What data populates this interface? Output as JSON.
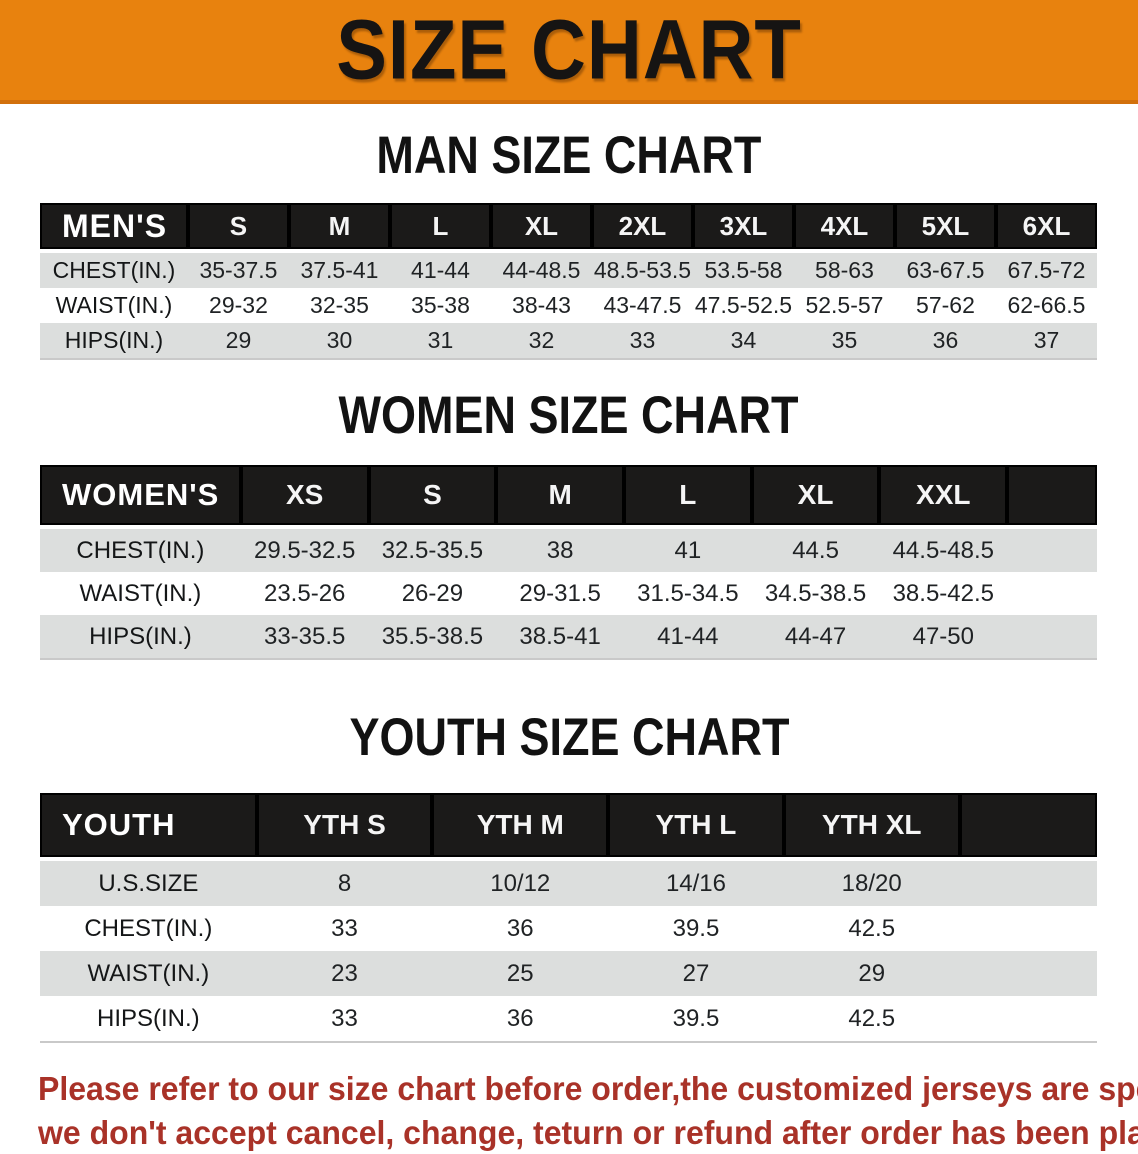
{
  "banner": {
    "title": "SIZE CHART",
    "bg_color": "#E8820E"
  },
  "sections": [
    {
      "title": "MAN SIZE CHART",
      "table": {
        "header_label": "MEN'S",
        "columns": [
          "S",
          "M",
          "L",
          "XL",
          "2XL",
          "3XL",
          "4XL",
          "5XL",
          "6XL"
        ],
        "rows": [
          {
            "label": "CHEST(IN.)",
            "values": [
              "35-37.5",
              "37.5-41",
              "41-44",
              "44-48.5",
              "48.5-53.5",
              "53.5-58",
              "58-63",
              "63-67.5",
              "67.5-72"
            ]
          },
          {
            "label": "WAIST(IN.)",
            "values": [
              "29-32",
              "32-35",
              "35-38",
              "38-43",
              "43-47.5",
              "47.5-52.5",
              "52.5-57",
              "57-62",
              "62-66.5"
            ]
          },
          {
            "label": "HIPS(IN.)",
            "values": [
              "29",
              "30",
              "31",
              "32",
              "33",
              "34",
              "35",
              "36",
              "37"
            ]
          }
        ]
      }
    },
    {
      "title": "WOMEN SIZE CHART",
      "table": {
        "header_label": "WOMEN'S",
        "columns": [
          "XS",
          "S",
          "M",
          "L",
          "XL",
          "XXL"
        ],
        "rows": [
          {
            "label": "CHEST(IN.)",
            "values": [
              "29.5-32.5",
              "32.5-35.5",
              "38",
              "41",
              "44.5",
              "44.5-48.5"
            ]
          },
          {
            "label": "WAIST(IN.)",
            "values": [
              "23.5-26",
              "26-29",
              "29-31.5",
              "31.5-34.5",
              "34.5-38.5",
              "38.5-42.5"
            ]
          },
          {
            "label": "HIPS(IN.)",
            "values": [
              "33-35.5",
              "35.5-38.5",
              "38.5-41",
              "41-44",
              "44-47",
              "47-50"
            ]
          }
        ]
      }
    },
    {
      "title": "YOUTH SIZE CHART",
      "table": {
        "header_label": "YOUTH",
        "columns": [
          "YTH S",
          "YTH M",
          "YTH L",
          "YTH XL"
        ],
        "rows": [
          {
            "label": "U.S.SIZE",
            "values": [
              "8",
              "10/12",
              "14/16",
              "18/20"
            ]
          },
          {
            "label": "CHEST(IN.)",
            "values": [
              "33",
              "36",
              "39.5",
              "42.5"
            ]
          },
          {
            "label": "WAIST(IN.)",
            "values": [
              "23",
              "25",
              "27",
              "29"
            ]
          },
          {
            "label": "HIPS(IN.)",
            "values": [
              "33",
              "36",
              "39.5",
              "42.5"
            ]
          }
        ]
      }
    }
  ],
  "footer": {
    "text_color": "#A93228",
    "lines": [
      "Please refer to our size chart before order,the customized jerseys are special products,",
      "we don't accept cancel, change, teturn or refund after order has been placed!"
    ]
  }
}
